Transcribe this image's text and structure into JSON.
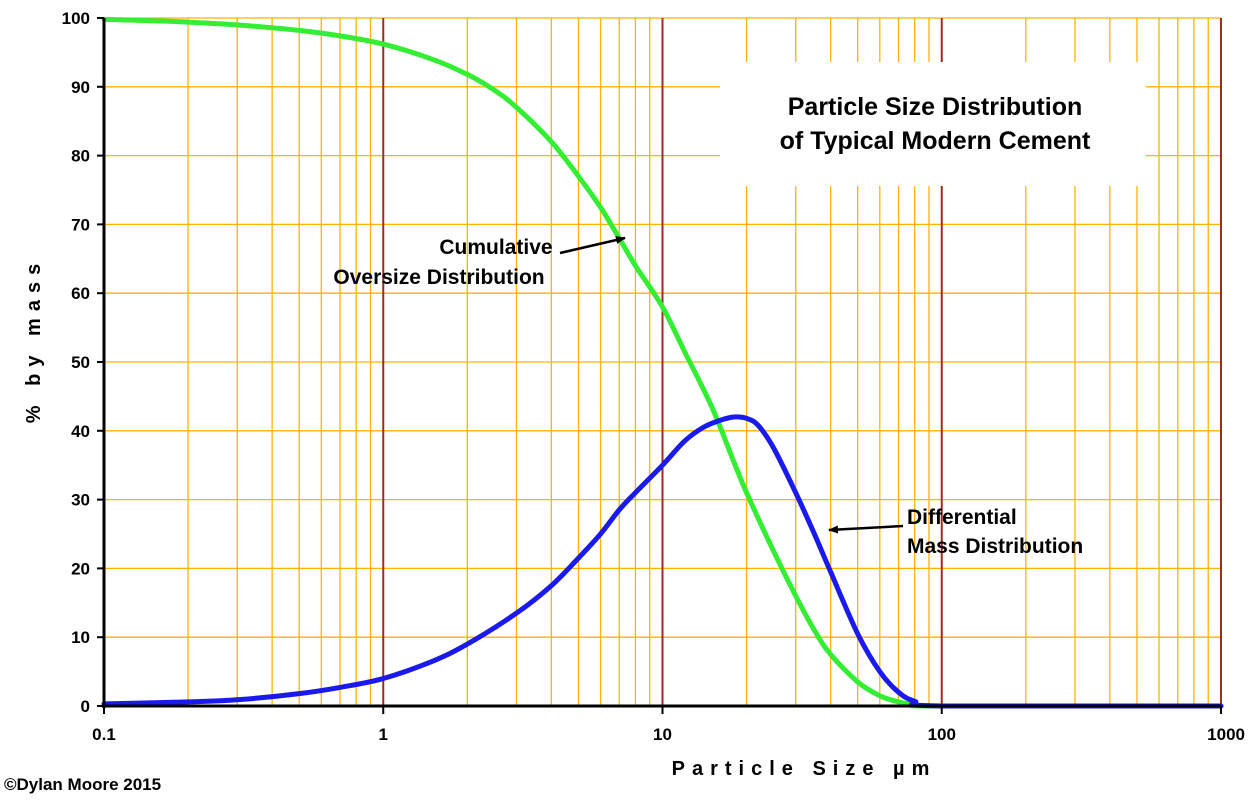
{
  "chart_data": {
    "type": "line",
    "title": [
      "Particle Size Distribution",
      "of Typical Modern Cement"
    ],
    "xlabel": "Particle Size µm",
    "ylabel": "% by mass",
    "xscale": "log",
    "xlim": [
      0.1,
      1000
    ],
    "ylim": [
      0,
      100
    ],
    "x_tick_labels": [
      "0.1",
      "1",
      "10",
      "100",
      "1000"
    ],
    "y_tick_labels": [
      "0",
      "10",
      "20",
      "30",
      "40",
      "50",
      "60",
      "70",
      "80",
      "90",
      "100"
    ],
    "grid": true,
    "series": [
      {
        "name": "Cumulative Oversize Distribution",
        "label_lines": [
          "Cumulative",
          "Oversize Distribution"
        ],
        "color": "#33ee33",
        "x": [
          0.1,
          0.15,
          0.2,
          0.3,
          0.5,
          0.7,
          1,
          1.5,
          2,
          2.5,
          3,
          4,
          5,
          6,
          7,
          8,
          10,
          12,
          15,
          18,
          20,
          25,
          30,
          35,
          40,
          50,
          60,
          70,
          80,
          100,
          1000
        ],
        "y": [
          99.8,
          99.6,
          99.4,
          99.0,
          98.2,
          97.4,
          96.2,
          94.0,
          91.8,
          89.5,
          87.0,
          82.0,
          77.0,
          72.5,
          68.0,
          64.0,
          58.0,
          51.5,
          43.5,
          35.5,
          31.0,
          22.5,
          16.0,
          11.0,
          7.5,
          3.5,
          1.5,
          0.6,
          0.2,
          0,
          0
        ]
      },
      {
        "name": "Differential Mass Distribution",
        "label_lines": [
          "Differential",
          "Mass Distribution"
        ],
        "color": "#1a1aee",
        "x": [
          0.1,
          0.2,
          0.3,
          0.5,
          0.7,
          1,
          1.5,
          2,
          3,
          4,
          5,
          6,
          7,
          8,
          10,
          12,
          14,
          16,
          18,
          20,
          22,
          25,
          30,
          35,
          40,
          50,
          60,
          70,
          80,
          100,
          1000
        ],
        "y": [
          0.3,
          0.6,
          0.9,
          1.8,
          2.7,
          4.0,
          6.5,
          9.0,
          13.5,
          17.5,
          21.5,
          25.0,
          28.5,
          31.0,
          35.0,
          38.5,
          40.5,
          41.5,
          42.0,
          41.8,
          40.8,
          37.5,
          31.0,
          25.0,
          19.5,
          10.5,
          5.0,
          2.0,
          0.7,
          0,
          0
        ]
      }
    ],
    "copyright": "©Dylan Moore 2015"
  }
}
